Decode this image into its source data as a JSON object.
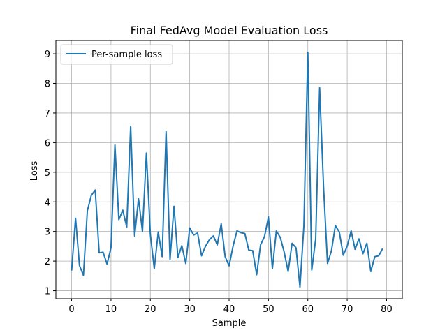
{
  "chart_data": {
    "type": "line",
    "title": "Final FedAvg Model Evaluation Loss",
    "xlabel": "Sample",
    "ylabel": "Loss",
    "xlim": [
      -4,
      84
    ],
    "ylim": [
      0.73,
      9.45
    ],
    "xticks": [
      0,
      10,
      20,
      30,
      40,
      50,
      60,
      70,
      80
    ],
    "yticks": [
      1,
      2,
      3,
      4,
      5,
      6,
      7,
      8,
      9
    ],
    "grid": true,
    "legend_position": "upper-left",
    "series": [
      {
        "name": "Per-sample loss",
        "color": "#1f77b4",
        "x": [
          0,
          1,
          2,
          3,
          4,
          5,
          6,
          7,
          8,
          9,
          10,
          11,
          12,
          13,
          14,
          15,
          16,
          17,
          18,
          19,
          20,
          21,
          22,
          23,
          24,
          25,
          26,
          27,
          28,
          29,
          30,
          31,
          32,
          33,
          34,
          35,
          36,
          37,
          38,
          39,
          40,
          41,
          42,
          43,
          44,
          45,
          46,
          47,
          48,
          49,
          50,
          51,
          52,
          53,
          54,
          55,
          56,
          57,
          58,
          59,
          60,
          61,
          62,
          63,
          64,
          65,
          66,
          67,
          68,
          69,
          70,
          71,
          72,
          73,
          74,
          75,
          76,
          77,
          78,
          79
        ],
        "values": [
          1.68,
          3.45,
          1.85,
          1.52,
          3.7,
          4.22,
          4.4,
          2.28,
          2.3,
          1.9,
          2.45,
          5.92,
          3.4,
          3.72,
          3.15,
          6.55,
          2.85,
          4.1,
          3.0,
          5.65,
          2.9,
          1.75,
          2.98,
          2.15,
          6.37,
          2.05,
          3.85,
          2.12,
          2.52,
          1.92,
          3.12,
          2.88,
          2.95,
          2.18,
          2.5,
          2.72,
          2.85,
          2.55,
          3.26,
          2.15,
          1.84,
          2.5,
          3.02,
          2.96,
          2.93,
          2.37,
          2.35,
          1.54,
          2.55,
          2.83,
          3.49,
          1.75,
          3.02,
          2.8,
          2.3,
          1.65,
          2.6,
          2.45,
          1.12,
          3.2,
          9.05,
          1.7,
          2.75,
          7.85,
          4.5,
          1.92,
          2.35,
          3.2,
          2.98,
          2.2,
          2.5,
          3.02,
          2.4,
          2.75,
          2.25,
          2.6,
          1.65,
          2.15,
          2.18,
          2.42
        ]
      }
    ]
  }
}
